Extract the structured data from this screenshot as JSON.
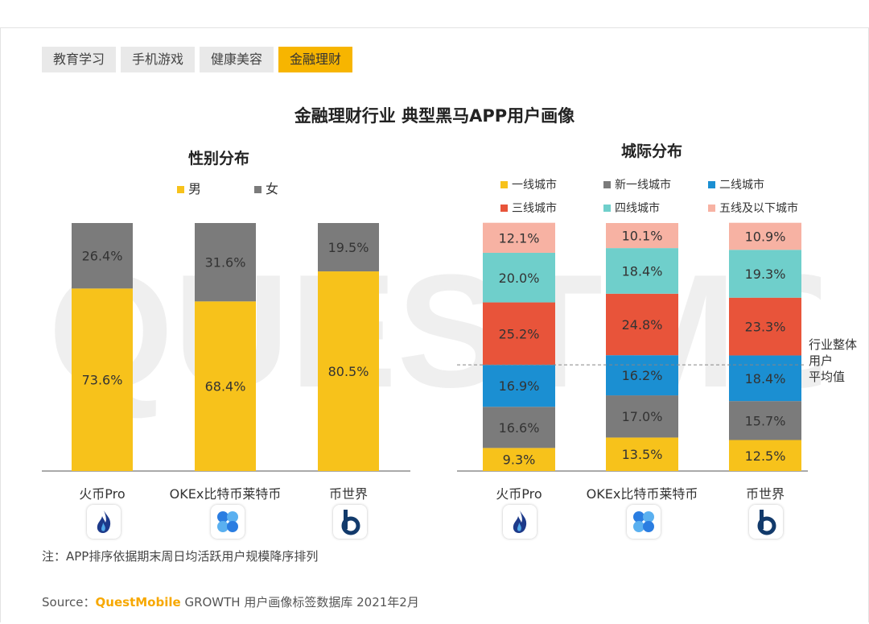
{
  "tabs": [
    {
      "label": "教育学习"
    },
    {
      "label": "手机游戏"
    },
    {
      "label": "健康美容"
    },
    {
      "label": "金融理财",
      "active": true
    }
  ],
  "main_title": "金融理财行业 典型黑马APP用户画像",
  "note": "注：APP排序依据期末周日均活跃用户规模降序排列",
  "source": {
    "prefix": "Source：",
    "brand": "QuestMobile",
    "text": "GROWTH 用户画像标签数据库 2021年2月"
  },
  "watermark": "QUESTMOBILE",
  "icons": [
    "huobi-icon",
    "okex-icon",
    "bishijie-icon"
  ],
  "chart_data": [
    {
      "type": "bar",
      "stacked": true,
      "title": "性别分布",
      "categories": [
        "火币Pro",
        "OKEx比特币莱特币",
        "币世界"
      ],
      "series": [
        {
          "name": "男",
          "color": "#f7c21b",
          "values": [
            73.6,
            68.4,
            80.5
          ],
          "labels": [
            "73.6%",
            "68.4%",
            "80.5%"
          ]
        },
        {
          "name": "女",
          "color": "#7b7b7b",
          "values": [
            26.4,
            31.6,
            19.5
          ],
          "labels": [
            "26.4%",
            "31.6%",
            "19.5%"
          ]
        }
      ],
      "ylim": [
        0,
        100
      ],
      "legend": "top-center"
    },
    {
      "type": "bar",
      "stacked": true,
      "title": "城际分布",
      "categories": [
        "火币Pro",
        "OKEx比特币莱特币",
        "币世界"
      ],
      "series": [
        {
          "name": "一线城市",
          "color": "#f7c21b",
          "values": [
            9.3,
            13.5,
            12.5
          ],
          "labels": [
            "9.3%",
            "13.5%",
            "12.5%"
          ]
        },
        {
          "name": "新一线城市",
          "color": "#7b7b7b",
          "values": [
            16.6,
            17.0,
            15.7
          ],
          "labels": [
            "16.6%",
            "17.0%",
            "15.7%"
          ]
        },
        {
          "name": "二线城市",
          "color": "#1b8fd2",
          "values": [
            16.9,
            16.2,
            18.4
          ],
          "labels": [
            "16.9%",
            "16.2%",
            "18.4%"
          ]
        },
        {
          "name": "三线城市",
          "color": "#e8543a",
          "values": [
            25.2,
            24.8,
            23.3
          ],
          "labels": [
            "25.2%",
            "24.8%",
            "23.3%"
          ]
        },
        {
          "name": "四线城市",
          "color": "#6fcfcb",
          "values": [
            20.0,
            18.4,
            19.3
          ],
          "labels": [
            "20.0%",
            "18.4%",
            "19.3%"
          ]
        },
        {
          "name": "五线及以下城市",
          "color": "#f7b2a3",
          "values": [
            12.1,
            10.1,
            10.9
          ],
          "labels": [
            "12.1%",
            "10.1%",
            "10.9%"
          ]
        }
      ],
      "ylim": [
        0,
        100
      ],
      "reference_line": {
        "label_lines": [
          "行业整体",
          "用户",
          "平均值"
        ],
        "value": 42.8
      },
      "legend": "top"
    }
  ]
}
